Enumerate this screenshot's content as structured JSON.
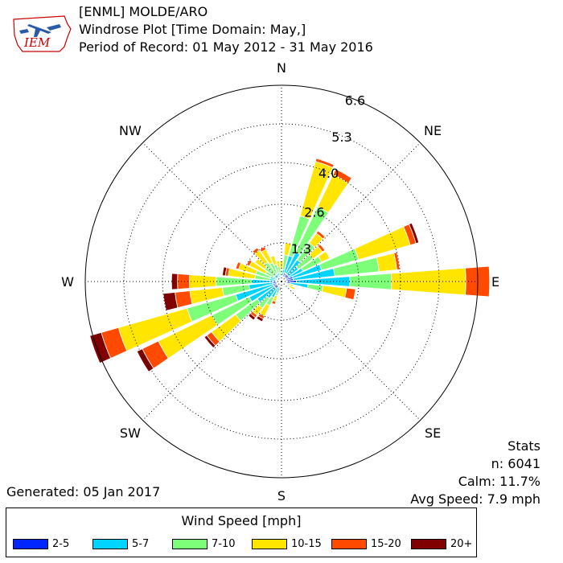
{
  "header": {
    "line1": "[ENML] MOLDE/ARO",
    "line2": "Windrose Plot [Time Domain: May,]",
    "line3": "Period of Record: 01 May 2012 - 31 May 2016"
  },
  "logo_text": "IEM",
  "stats": {
    "heading": "Stats",
    "n": "n: 6041",
    "calm": "Calm: 11.7%",
    "avg": "Avg Speed: 7.9 mph"
  },
  "generated": "Generated: 05 Jan 2017",
  "chart_data": {
    "type": "windrose",
    "directions": [
      "N",
      "NE",
      "E",
      "SE",
      "S",
      "SW",
      "W",
      "NW"
    ],
    "radial_ticks": [
      "1.3",
      "2.6",
      "4.0",
      "5.3",
      "6.6"
    ],
    "rmax": 6.6,
    "legend_title": "Wind Speed [mph]",
    "bins": [
      {
        "label": "2-5",
        "color": "#0026ff"
      },
      {
        "label": "5-7",
        "color": "#00d4ff"
      },
      {
        "label": "7-10",
        "color": "#7dff7a"
      },
      {
        "label": "10-15",
        "color": "#ffe500"
      },
      {
        "label": "15-20",
        "color": "#ff4a00"
      },
      {
        "label": "20+",
        "color": "#800000"
      }
    ],
    "sectors": [
      {
        "dir": 0,
        "values": [
          0.1,
          0.1,
          0.2,
          0.3,
          0.0,
          0.0
        ]
      },
      {
        "dir": 10,
        "values": [
          0.2,
          0.2,
          0.5,
          0.4,
          0.0,
          0.0
        ]
      },
      {
        "dir": 20,
        "values": [
          0.3,
          0.6,
          1.4,
          1.9,
          0.1,
          0.0
        ]
      },
      {
        "dir": 30,
        "values": [
          0.3,
          0.8,
          1.7,
          1.2,
          0.2,
          0.0
        ]
      },
      {
        "dir": 40,
        "values": [
          0.3,
          0.6,
          0.7,
          0.4,
          0.1,
          0.0
        ]
      },
      {
        "dir": 50,
        "values": [
          0.3,
          0.4,
          0.6,
          0.4,
          0.1,
          0.0
        ]
      },
      {
        "dir": 60,
        "values": [
          0.3,
          0.5,
          0.7,
          0.3,
          0.0,
          0.0
        ]
      },
      {
        "dir": 70,
        "values": [
          0.4,
          1.0,
          1.3,
          1.8,
          0.2,
          0.1
        ]
      },
      {
        "dir": 80,
        "values": [
          0.4,
          1.4,
          1.5,
          0.6,
          0.1,
          0.0
        ]
      },
      {
        "dir": 90,
        "values": [
          0.5,
          1.8,
          1.4,
          2.5,
          0.8,
          0.0
        ]
      },
      {
        "dir": 100,
        "values": [
          0.3,
          0.6,
          0.5,
          0.8,
          0.3,
          0.0
        ]
      },
      {
        "dir": 110,
        "values": [
          0.1,
          0.1,
          0.1,
          0.1,
          0.0,
          0.0
        ]
      },
      {
        "dir": 120,
        "values": [
          0.1,
          0.1,
          0.1,
          0.2,
          0.0,
          0.0
        ]
      },
      {
        "dir": 180,
        "values": [
          0.1,
          0.1,
          0.0,
          0.0,
          0.0,
          0.0
        ]
      },
      {
        "dir": 190,
        "values": [
          0.1,
          0.1,
          0.0,
          0.0,
          0.0,
          0.1
        ]
      },
      {
        "dir": 200,
        "values": [
          0.1,
          0.3,
          0.1,
          0.2,
          0.1,
          0.0
        ]
      },
      {
        "dir": 210,
        "values": [
          0.2,
          0.4,
          0.3,
          0.4,
          0.1,
          0.1
        ]
      },
      {
        "dir": 220,
        "values": [
          0.3,
          0.4,
          0.4,
          0.3,
          0.1,
          0.1
        ]
      },
      {
        "dir": 230,
        "values": [
          0.3,
          0.7,
          0.9,
          1.0,
          0.2,
          0.1
        ]
      },
      {
        "dir": 240,
        "values": [
          0.3,
          0.9,
          1.4,
          2.0,
          0.6,
          0.2
        ]
      },
      {
        "dir": 250,
        "values": [
          0.3,
          1.3,
          1.7,
          2.4,
          0.6,
          0.4
        ]
      },
      {
        "dir": 260,
        "values": [
          0.3,
          0.8,
          0.9,
          1.1,
          0.5,
          0.4
        ]
      },
      {
        "dir": 270,
        "values": [
          0.3,
          0.7,
          1.2,
          0.9,
          0.4,
          0.2
        ]
      },
      {
        "dir": 280,
        "values": [
          0.1,
          0.3,
          0.5,
          0.9,
          0.1,
          0.1
        ]
      },
      {
        "dir": 290,
        "values": [
          0.1,
          0.3,
          0.5,
          0.6,
          0.1,
          0.0
        ]
      },
      {
        "dir": 300,
        "values": [
          0.1,
          0.2,
          0.3,
          0.6,
          0.1,
          0.0
        ]
      },
      {
        "dir": 310,
        "values": [
          0.1,
          0.2,
          0.4,
          0.4,
          0.0,
          0.0
        ]
      },
      {
        "dir": 320,
        "values": [
          0.1,
          0.2,
          0.5,
          0.5,
          0.1,
          0.0
        ]
      },
      {
        "dir": 330,
        "values": [
          0.1,
          0.2,
          0.4,
          0.5,
          0.1,
          0.0
        ]
      },
      {
        "dir": 340,
        "values": [
          0.1,
          0.2,
          0.3,
          0.3,
          0.0,
          0.0
        ]
      },
      {
        "dir": 350,
        "values": [
          0.1,
          0.1,
          0.3,
          0.2,
          0.0,
          0.0
        ]
      }
    ]
  }
}
